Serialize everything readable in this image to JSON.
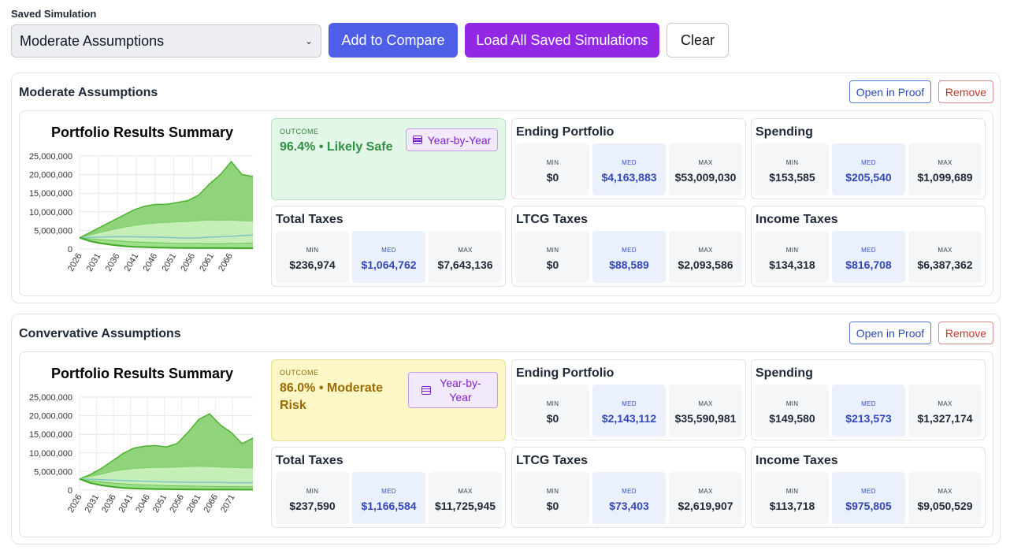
{
  "header": {
    "saved_label": "Saved Simulation",
    "select_value": "Moderate Assumptions",
    "add_compare": "Add to Compare",
    "load_all": "Load All Saved Simulations",
    "clear": "Clear"
  },
  "simulations": [
    {
      "title": "Moderate Assumptions",
      "open_proof": "Open in Proof",
      "remove": "Remove",
      "chart_title": "Portfolio Results Summary",
      "outcome_label": "OUTCOME",
      "outcome_value": "96.4% • Likely Safe",
      "outcome_status": "safe",
      "year_by_year": "Year-by-Year",
      "stats": [
        {
          "title": "Ending Portfolio",
          "min": "$0",
          "med": "$4,163,883",
          "max": "$53,009,030"
        },
        {
          "title": "Spending",
          "min": "$153,585",
          "med": "$205,540",
          "max": "$1,099,689"
        },
        {
          "title": "Total Taxes",
          "min": "$236,974",
          "med": "$1,064,762",
          "max": "$7,643,136"
        },
        {
          "title": "LTCG Taxes",
          "min": "$0",
          "med": "$88,589",
          "max": "$2,093,586"
        },
        {
          "title": "Income Taxes",
          "min": "$134,318",
          "med": "$816,708",
          "max": "$6,387,362"
        }
      ]
    },
    {
      "title": "Convervative Assumptions",
      "open_proof": "Open in Proof",
      "remove": "Remove",
      "chart_title": "Portfolio Results Summary",
      "outcome_label": "OUTCOME",
      "outcome_value": "86.0% • Moderate Risk",
      "outcome_status": "moderate",
      "year_by_year": "Year-by-Year",
      "stats": [
        {
          "title": "Ending Portfolio",
          "min": "$0",
          "med": "$2,143,112",
          "max": "$35,590,981"
        },
        {
          "title": "Spending",
          "min": "$149,580",
          "med": "$213,573",
          "max": "$1,327,174"
        },
        {
          "title": "Total Taxes",
          "min": "$237,590",
          "med": "$1,166,584",
          "max": "$11,725,945"
        },
        {
          "title": "LTCG Taxes",
          "min": "$0",
          "med": "$73,403",
          "max": "$2,619,907"
        },
        {
          "title": "Income Taxes",
          "min": "$113,718",
          "med": "$975,805",
          "max": "$9,050,529"
        }
      ]
    }
  ],
  "stat_labels": {
    "min": "MIN",
    "med": "MED",
    "max": "MAX"
  },
  "chart_data": [
    {
      "type": "area",
      "title": "Portfolio Results Summary",
      "ylim": [
        0,
        25000000
      ],
      "yticks": [
        "25,000,000",
        "20,000,000",
        "15,000,000",
        "10,000,000",
        "5,000,000",
        "0"
      ],
      "xticks": [
        "2026",
        "2031",
        "2036",
        "2041",
        "2046",
        "2051",
        "2056",
        "2061",
        "2066"
      ],
      "x_start": 2026,
      "x_end": 2072,
      "series": [
        {
          "role": "p90",
          "values": [
            3000000,
            4500000,
            6000000,
            7500000,
            9000000,
            10500000,
            11500000,
            12000000,
            12000000,
            12500000,
            13000000,
            14500000,
            17500000,
            20000000,
            23500000,
            20000000,
            19500000
          ]
        },
        {
          "role": "p75",
          "values": [
            3000000,
            3800000,
            4500000,
            5200000,
            5800000,
            6300000,
            6700000,
            7000000,
            7100000,
            7300000,
            7400000,
            7600000,
            7800000,
            7700000,
            7800000,
            7600000,
            7500000
          ]
        },
        {
          "role": "median",
          "values": [
            3000000,
            3100000,
            3200000,
            3300000,
            3300000,
            3300000,
            3200000,
            3200000,
            3100000,
            3000000,
            2900000,
            3000000,
            3200000,
            3300000,
            3400000,
            3600000,
            3800000
          ]
        },
        {
          "role": "p25",
          "values": [
            3000000,
            2700000,
            2500000,
            2300000,
            2100000,
            1900000,
            1800000,
            1700000,
            1600000,
            1500000,
            1500000,
            1500000,
            1400000,
            1400000,
            1500000,
            1500000,
            1600000
          ]
        },
        {
          "role": "p10",
          "values": [
            3000000,
            2100000,
            1500000,
            1100000,
            800000,
            600000,
            500000,
            400000,
            350000,
            300000,
            280000,
            260000,
            250000,
            240000,
            230000,
            220000,
            210000
          ]
        }
      ]
    },
    {
      "type": "area",
      "title": "Portfolio Results Summary",
      "ylim": [
        0,
        25000000
      ],
      "yticks": [
        "25,000,000",
        "20,000,000",
        "15,000,000",
        "10,000,000",
        "5,000,000",
        "0"
      ],
      "xticks": [
        "2026",
        "2031",
        "2036",
        "2041",
        "2046",
        "2051",
        "2056",
        "2061",
        "2066",
        "2071"
      ],
      "x_start": 2026,
      "x_end": 2077,
      "series": [
        {
          "role": "p90",
          "values": [
            3000000,
            4200000,
            5800000,
            7800000,
            9800000,
            11300000,
            11800000,
            12000000,
            11600000,
            12500000,
            15500000,
            19000000,
            20500000,
            17500000,
            15500000,
            12500000,
            14000000
          ]
        },
        {
          "role": "p75",
          "values": [
            3000000,
            3700000,
            4300000,
            5000000,
            5500000,
            5800000,
            6000000,
            6100000,
            6100000,
            6200000,
            6300000,
            6400000,
            6300000,
            6200000,
            6100000,
            6000000,
            6000000
          ]
        },
        {
          "role": "median",
          "values": [
            3000000,
            2900000,
            2800000,
            2700000,
            2600000,
            2500000,
            2400000,
            2300000,
            2200000,
            2200000,
            2100000,
            2100000,
            2100000,
            2100000,
            2000000,
            2000000,
            2000000
          ]
        },
        {
          "role": "p25",
          "values": [
            3000000,
            2500000,
            2200000,
            1900000,
            1700000,
            1500000,
            1400000,
            1300000,
            1200000,
            1150000,
            1100000,
            1050000,
            1000000,
            950000,
            950000,
            900000,
            900000
          ]
        },
        {
          "role": "p10",
          "values": [
            3000000,
            1900000,
            1300000,
            900000,
            600000,
            450000,
            350000,
            300000,
            250000,
            220000,
            200000,
            180000,
            160000,
            150000,
            140000,
            130000,
            120000
          ]
        }
      ]
    }
  ]
}
